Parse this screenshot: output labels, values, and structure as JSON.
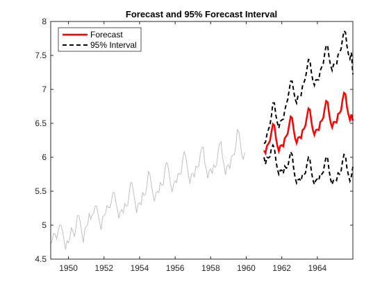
{
  "chart_data": {
    "type": "line",
    "title": "Forecast and 95% Forecast Interval",
    "xlim": [
      1949,
      1966
    ],
    "ylim": [
      4.5,
      8
    ],
    "x_ticks": [
      1950,
      1952,
      1954,
      1956,
      1958,
      1960,
      1962,
      1964
    ],
    "x_tick_labels": [
      "1950",
      "1952",
      "1954",
      "1956",
      "1958",
      "1960",
      "1962",
      "1964"
    ],
    "y_ticks": [
      4.5,
      5,
      5.5,
      6,
      6.5,
      7,
      7.5,
      8
    ],
    "y_tick_labels": [
      "4.5",
      "5",
      "5.5",
      "6",
      "6.5",
      "7",
      "7.5",
      "8"
    ],
    "grid": false,
    "legend_position": "top-left",
    "history": {
      "color": "#c0c0c0",
      "start": 1949.0,
      "step": 0.08333,
      "values": [
        4.72,
        4.77,
        4.88,
        4.86,
        4.8,
        4.91,
        5.0,
        5.0,
        4.91,
        4.78,
        4.64,
        4.77,
        4.74,
        4.82,
        4.96,
        4.91,
        4.83,
        4.96,
        5.14,
        5.14,
        5.04,
        4.89,
        4.74,
        4.94,
        4.98,
        5.01,
        5.18,
        5.09,
        5.15,
        5.18,
        5.28,
        5.28,
        5.16,
        5.05,
        4.93,
        5.12,
        5.14,
        5.17,
        5.29,
        5.26,
        5.26,
        5.35,
        5.48,
        5.48,
        5.34,
        5.23,
        5.1,
        5.2,
        5.23,
        5.18,
        5.32,
        5.28,
        5.29,
        5.47,
        5.63,
        5.62,
        5.46,
        5.34,
        5.18,
        5.31,
        5.33,
        5.3,
        5.48,
        5.44,
        5.45,
        5.59,
        5.79,
        5.75,
        5.59,
        5.46,
        5.35,
        5.47,
        5.5,
        5.48,
        5.63,
        5.59,
        5.59,
        5.8,
        5.92,
        5.9,
        5.75,
        5.59,
        5.49,
        5.61,
        5.65,
        5.63,
        5.76,
        5.75,
        5.76,
        5.94,
        6.08,
        6.03,
        5.89,
        5.74,
        5.61,
        5.75,
        5.76,
        5.71,
        5.87,
        5.85,
        5.87,
        6.05,
        6.14,
        6.15,
        5.92,
        5.83,
        5.69,
        5.8,
        5.83,
        5.76,
        5.89,
        5.85,
        5.89,
        6.08,
        6.2,
        6.23,
        6.0,
        5.89,
        5.74,
        5.87,
        5.89,
        5.83,
        6.01,
        6.03,
        6.04,
        6.16,
        6.41,
        6.38,
        6.22,
        6.03,
        5.97,
        6.07
      ]
    },
    "series": [
      {
        "name": "Forecast",
        "color": "#ff0000",
        "start": 1961.0,
        "step": 0.08333,
        "values": [
          6.1,
          6.06,
          6.17,
          6.2,
          6.24,
          6.37,
          6.49,
          6.47,
          6.29,
          6.17,
          6.09,
          6.17,
          6.18,
          6.16,
          6.28,
          6.31,
          6.35,
          6.48,
          6.6,
          6.58,
          6.41,
          6.28,
          6.21,
          6.29,
          6.3,
          6.28,
          6.4,
          6.42,
          6.47,
          6.6,
          6.72,
          6.7,
          6.52,
          6.4,
          6.33,
          6.4,
          6.41,
          6.4,
          6.52,
          6.54,
          6.58,
          6.72,
          6.83,
          6.81,
          6.63,
          6.51,
          6.44,
          6.52,
          6.52,
          6.51,
          6.64,
          6.65,
          6.69,
          6.84,
          6.95,
          6.93,
          6.74,
          6.63,
          6.55,
          6.63,
          6.54
        ]
      },
      {
        "name": "95% Interval",
        "color": "#000000",
        "start": 1961.0,
        "step": 0.08333,
        "upper": [
          6.2,
          6.22,
          6.34,
          6.41,
          6.47,
          6.61,
          6.8,
          6.8,
          6.62,
          6.51,
          6.43,
          6.53,
          6.55,
          6.56,
          6.69,
          6.78,
          6.85,
          6.99,
          7.12,
          7.12,
          6.98,
          6.86,
          6.8,
          6.91,
          6.92,
          6.91,
          7.05,
          7.1,
          7.17,
          7.3,
          7.44,
          7.43,
          7.25,
          7.13,
          7.06,
          7.14,
          7.14,
          7.14,
          7.28,
          7.33,
          7.38,
          7.53,
          7.65,
          7.64,
          7.46,
          7.35,
          7.28,
          7.37,
          7.36,
          7.36,
          7.51,
          7.55,
          7.59,
          7.74,
          7.86,
          7.84,
          7.64,
          7.52,
          7.45,
          7.54,
          7.22
        ],
        "lower": [
          6.0,
          5.9,
          6.0,
          5.99,
          6.01,
          6.13,
          6.18,
          6.14,
          5.96,
          5.83,
          5.75,
          5.81,
          5.81,
          5.76,
          5.87,
          5.84,
          5.85,
          5.97,
          6.08,
          6.04,
          5.84,
          5.7,
          5.62,
          5.67,
          5.68,
          5.65,
          5.75,
          5.74,
          5.77,
          5.9,
          6.0,
          5.97,
          5.79,
          5.67,
          5.6,
          5.66,
          5.68,
          5.66,
          5.76,
          5.75,
          5.78,
          5.91,
          6.01,
          5.98,
          5.8,
          5.67,
          5.6,
          5.67,
          5.68,
          5.66,
          5.77,
          5.75,
          5.79,
          5.94,
          6.04,
          6.02,
          5.84,
          5.74,
          5.65,
          5.72,
          5.86
        ]
      }
    ]
  }
}
